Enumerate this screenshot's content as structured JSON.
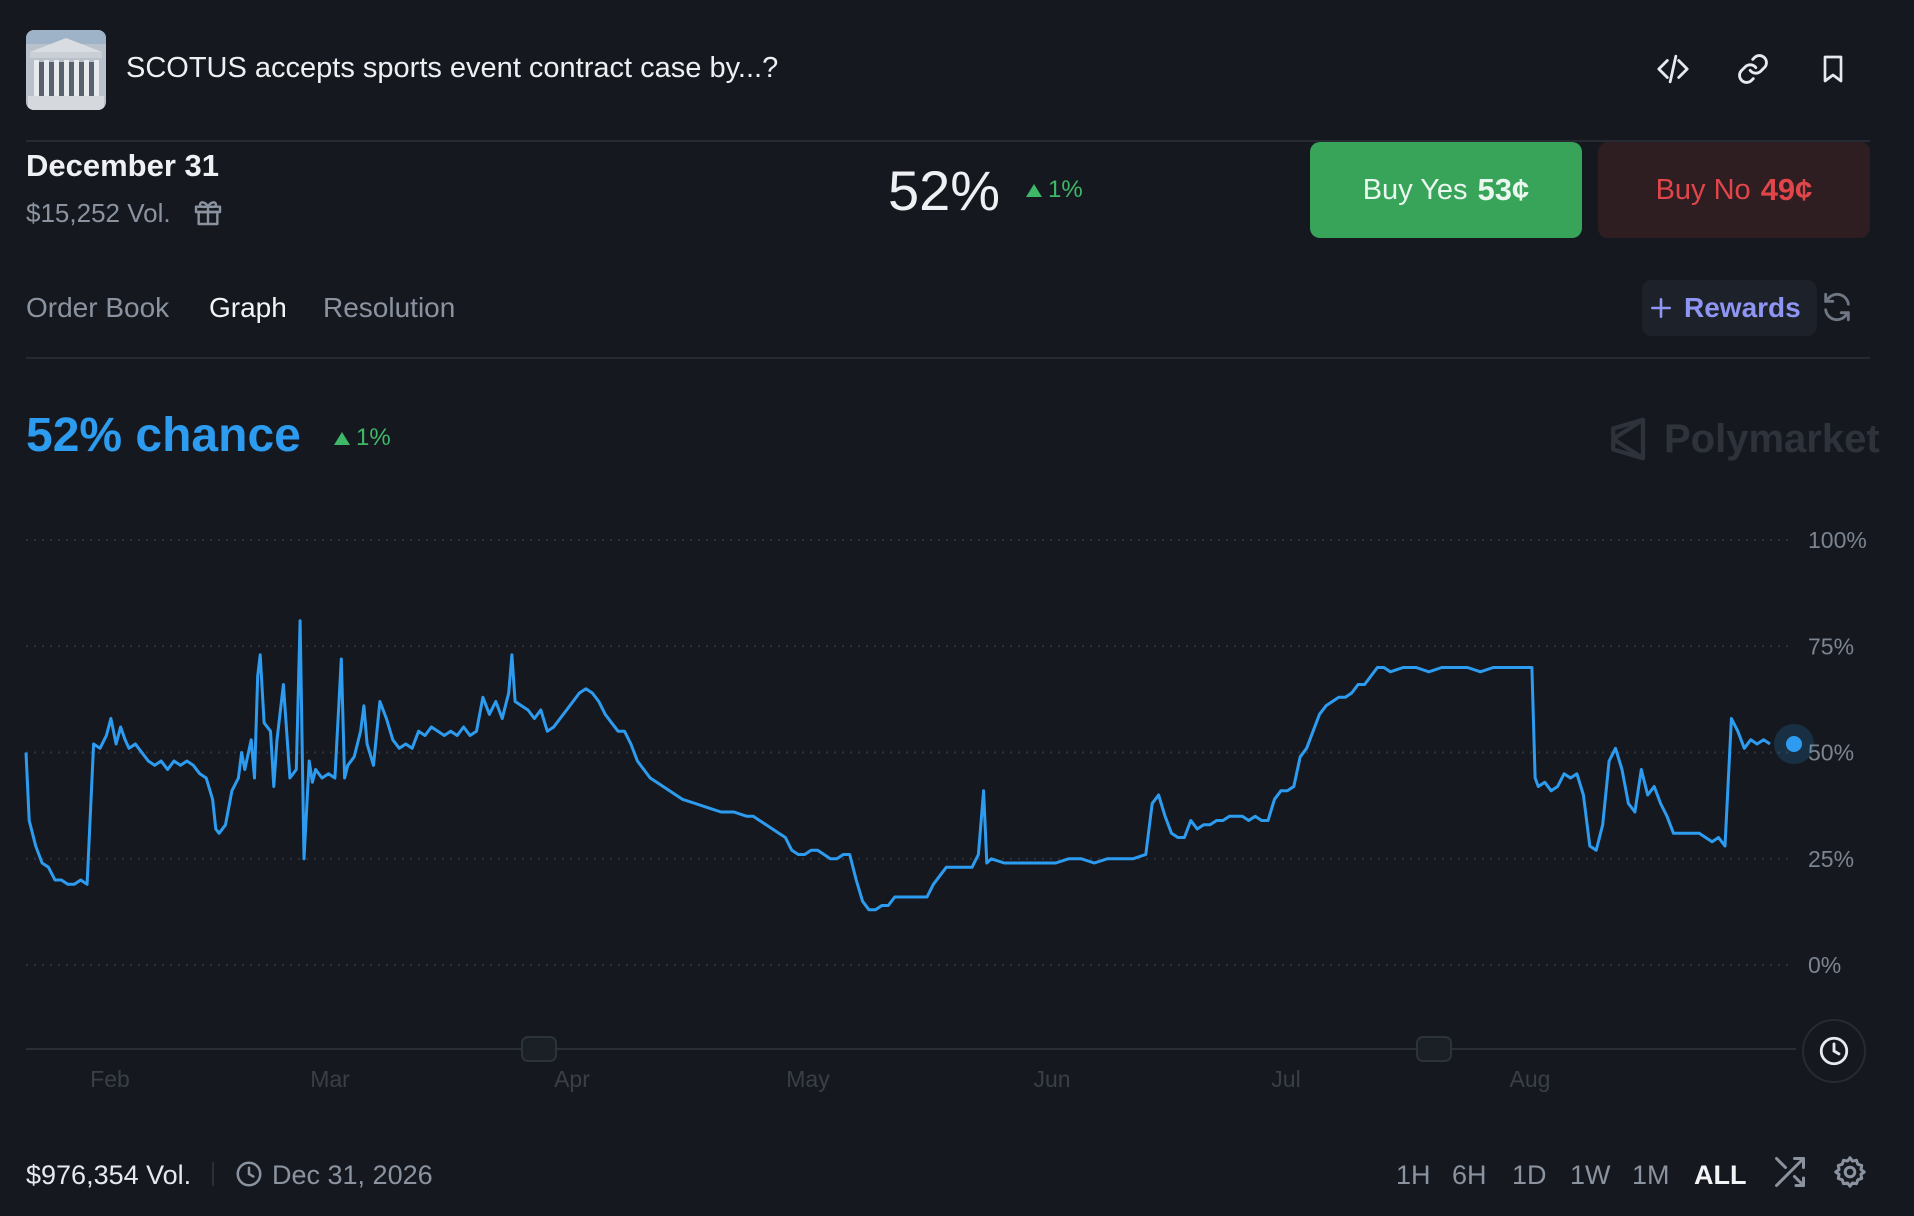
{
  "header": {
    "title": "SCOTUS accepts sports event contract case by...?",
    "icons": [
      "code-icon",
      "link-icon",
      "bookmark-icon"
    ]
  },
  "market": {
    "date": "December 31",
    "volume": "$15,252 Vol.",
    "percent": "52%",
    "change": "1%",
    "buy_yes_label": "Buy Yes",
    "buy_yes_price": "53¢",
    "buy_no_label": "Buy No",
    "buy_no_price": "49¢"
  },
  "tabs": [
    "Order Book",
    "Graph",
    "Resolution"
  ],
  "active_tab": "Graph",
  "rewards_label": "Rewards",
  "chance": {
    "text": "52% chance",
    "change": "1%"
  },
  "brand": "Polymarket",
  "chart_data": {
    "type": "line",
    "x_tick_labels": [
      "Feb",
      "Mar",
      "Apr",
      "May",
      "Jun",
      "Jul",
      "Aug"
    ],
    "y_tick_labels": [
      "100%",
      "75%",
      "50%",
      "25%",
      "0%"
    ],
    "ylim": [
      0,
      100
    ],
    "grid": true,
    "series": [
      {
        "color": "#2d9cf0",
        "points": [
          [
            0,
            50
          ],
          [
            0.5,
            34
          ],
          [
            1.5,
            28
          ],
          [
            2.5,
            24
          ],
          [
            3.5,
            23
          ],
          [
            4.5,
            20
          ],
          [
            5.5,
            20
          ],
          [
            6.5,
            19
          ],
          [
            7.5,
            19
          ],
          [
            8.5,
            20
          ],
          [
            9.5,
            19
          ],
          [
            10.5,
            52
          ],
          [
            11.5,
            51
          ],
          [
            12.5,
            54
          ],
          [
            13.2,
            58
          ],
          [
            14,
            52
          ],
          [
            14.7,
            56
          ],
          [
            15.4,
            53
          ],
          [
            16,
            51
          ],
          [
            17,
            52
          ],
          [
            18,
            50
          ],
          [
            19,
            48
          ],
          [
            20,
            47
          ],
          [
            21,
            48
          ],
          [
            22,
            46
          ],
          [
            23,
            48
          ],
          [
            24,
            47
          ],
          [
            25,
            48
          ],
          [
            26,
            47
          ],
          [
            27,
            45
          ],
          [
            28,
            44
          ],
          [
            29,
            39
          ],
          [
            29.5,
            32
          ],
          [
            30,
            31
          ],
          [
            31,
            33
          ],
          [
            32,
            41
          ],
          [
            33,
            44
          ],
          [
            33.5,
            50
          ],
          [
            34,
            46
          ],
          [
            35,
            53
          ],
          [
            35.5,
            44
          ],
          [
            36,
            68
          ],
          [
            36.4,
            73
          ],
          [
            37,
            57
          ],
          [
            38,
            55
          ],
          [
            38.5,
            42
          ],
          [
            39,
            53
          ],
          [
            40,
            66
          ],
          [
            41,
            44
          ],
          [
            42,
            46
          ],
          [
            42.6,
            81
          ],
          [
            43.2,
            25
          ],
          [
            44,
            48
          ],
          [
            44.5,
            43
          ],
          [
            45,
            46
          ],
          [
            46,
            44
          ],
          [
            47,
            45
          ],
          [
            48,
            44
          ],
          [
            49,
            72
          ],
          [
            49.5,
            44
          ],
          [
            50,
            47
          ],
          [
            51,
            49
          ],
          [
            52,
            55
          ],
          [
            52.5,
            61
          ],
          [
            53,
            52
          ],
          [
            54,
            47
          ],
          [
            55,
            62
          ],
          [
            56,
            58
          ],
          [
            57,
            53
          ],
          [
            58,
            51
          ],
          [
            59,
            52
          ],
          [
            60,
            51
          ],
          [
            61,
            55
          ],
          [
            62,
            54
          ],
          [
            63,
            56
          ],
          [
            64,
            55
          ],
          [
            65,
            54
          ],
          [
            66,
            55
          ],
          [
            67,
            54
          ],
          [
            68,
            56
          ],
          [
            69,
            54
          ],
          [
            70,
            55
          ],
          [
            71,
            63
          ],
          [
            72,
            59
          ],
          [
            73,
            62
          ],
          [
            74,
            58
          ],
          [
            75,
            64
          ],
          [
            75.5,
            73
          ],
          [
            76,
            62
          ],
          [
            77,
            61
          ],
          [
            78,
            60
          ],
          [
            79,
            58
          ],
          [
            80,
            60
          ],
          [
            81,
            55
          ],
          [
            82,
            56
          ],
          [
            83,
            58
          ],
          [
            84,
            60
          ],
          [
            85,
            62
          ],
          [
            86,
            64
          ],
          [
            87,
            65
          ],
          [
            88,
            64
          ],
          [
            89,
            62
          ],
          [
            90,
            59
          ],
          [
            91,
            57
          ],
          [
            92,
            55
          ],
          [
            93,
            55
          ],
          [
            94,
            52
          ],
          [
            95,
            48
          ],
          [
            96,
            46
          ],
          [
            97,
            44
          ],
          [
            98,
            43
          ],
          [
            99,
            42
          ],
          [
            100,
            41
          ],
          [
            102,
            39
          ],
          [
            104,
            38
          ],
          [
            106,
            37
          ],
          [
            108,
            36
          ],
          [
            110,
            36
          ],
          [
            112,
            35
          ],
          [
            113,
            35
          ],
          [
            114,
            34
          ],
          [
            115,
            33
          ],
          [
            116,
            32
          ],
          [
            117,
            31
          ],
          [
            118,
            30
          ],
          [
            119,
            27
          ],
          [
            120,
            26
          ],
          [
            121,
            26
          ],
          [
            122,
            27
          ],
          [
            123,
            27
          ],
          [
            124,
            26
          ],
          [
            125,
            25
          ],
          [
            126,
            25
          ],
          [
            127,
            26
          ],
          [
            128,
            26
          ],
          [
            129,
            20
          ],
          [
            130,
            15
          ],
          [
            131,
            13
          ],
          [
            132,
            13
          ],
          [
            133,
            14
          ],
          [
            134,
            14
          ],
          [
            135,
            16
          ],
          [
            136,
            16
          ],
          [
            137,
            16
          ],
          [
            138,
            16
          ],
          [
            139,
            16
          ],
          [
            140,
            16
          ],
          [
            141,
            19
          ],
          [
            142,
            21
          ],
          [
            143,
            23
          ],
          [
            144,
            23
          ],
          [
            145,
            23
          ],
          [
            146,
            23
          ],
          [
            147,
            23
          ],
          [
            148,
            26
          ],
          [
            148.8,
            41
          ],
          [
            149.3,
            24
          ],
          [
            150,
            25
          ],
          [
            152,
            24
          ],
          [
            154,
            24
          ],
          [
            156,
            24
          ],
          [
            158,
            24
          ],
          [
            160,
            24
          ],
          [
            162,
            25
          ],
          [
            164,
            25
          ],
          [
            166,
            24
          ],
          [
            168,
            25
          ],
          [
            170,
            25
          ],
          [
            172,
            25
          ],
          [
            174,
            26
          ],
          [
            175,
            38
          ],
          [
            176,
            40
          ],
          [
            177,
            35
          ],
          [
            178,
            31
          ],
          [
            179,
            30
          ],
          [
            180,
            30
          ],
          [
            181,
            34
          ],
          [
            182,
            32
          ],
          [
            183,
            33
          ],
          [
            184,
            33
          ],
          [
            185,
            34
          ],
          [
            186,
            34
          ],
          [
            187,
            35
          ],
          [
            188,
            35
          ],
          [
            189,
            35
          ],
          [
            190,
            34
          ],
          [
            191,
            35
          ],
          [
            192,
            34
          ],
          [
            193,
            34
          ],
          [
            194,
            39
          ],
          [
            195,
            41
          ],
          [
            196,
            41
          ],
          [
            197,
            42
          ],
          [
            198,
            49
          ],
          [
            199,
            51
          ],
          [
            200,
            55
          ],
          [
            201,
            59
          ],
          [
            202,
            61
          ],
          [
            203,
            62
          ],
          [
            204,
            63
          ],
          [
            205,
            63
          ],
          [
            206,
            64
          ],
          [
            207,
            66
          ],
          [
            208,
            66
          ],
          [
            209,
            68
          ],
          [
            210,
            70
          ],
          [
            211,
            70
          ],
          [
            212,
            69
          ],
          [
            214,
            70
          ],
          [
            216,
            70
          ],
          [
            218,
            69
          ],
          [
            220,
            70
          ],
          [
            222,
            70
          ],
          [
            224,
            70
          ],
          [
            226,
            69
          ],
          [
            228,
            70
          ],
          [
            230,
            70
          ],
          [
            232,
            70
          ],
          [
            233,
            70
          ],
          [
            234,
            70
          ],
          [
            234.5,
            44
          ],
          [
            235,
            42
          ],
          [
            236,
            43
          ],
          [
            237,
            41
          ],
          [
            238,
            42
          ],
          [
            239,
            45
          ],
          [
            240,
            44
          ],
          [
            241,
            45
          ],
          [
            242,
            40
          ],
          [
            243,
            28
          ],
          [
            244,
            27
          ],
          [
            245,
            33
          ],
          [
            246,
            48
          ],
          [
            247,
            51
          ],
          [
            248,
            46
          ],
          [
            249,
            38
          ],
          [
            250,
            36
          ],
          [
            251,
            46
          ],
          [
            252,
            40
          ],
          [
            253,
            42
          ],
          [
            254,
            38
          ],
          [
            255,
            35
          ],
          [
            256,
            31
          ],
          [
            257,
            31
          ],
          [
            258,
            31
          ],
          [
            259,
            31
          ],
          [
            260,
            31
          ],
          [
            261,
            30
          ],
          [
            262,
            29
          ],
          [
            263,
            30
          ],
          [
            264,
            28
          ],
          [
            265,
            58
          ],
          [
            266,
            55
          ],
          [
            267,
            51
          ],
          [
            268,
            53
          ],
          [
            269,
            52
          ],
          [
            270,
            53
          ],
          [
            271,
            52
          ]
        ]
      }
    ]
  },
  "footer": {
    "volume": "$976,354 Vol.",
    "end_date": "Dec 31, 2026",
    "ranges": [
      "1H",
      "6H",
      "1D",
      "1W",
      "1M",
      "ALL"
    ],
    "active_range": "ALL"
  }
}
